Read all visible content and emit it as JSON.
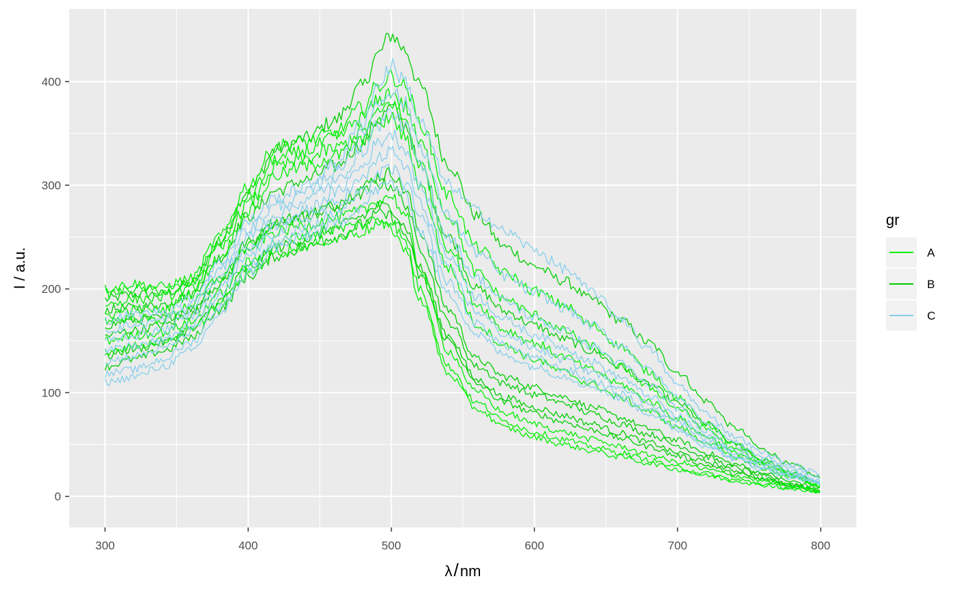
{
  "chart_data": {
    "type": "line",
    "title": "",
    "xlabel_symbol": "λ",
    "xlabel_unit": "nm",
    "ylabel": "I / a.u.",
    "xlim": [
      275,
      825
    ],
    "ylim": [
      -30,
      470
    ],
    "x_ticks": [
      300,
      400,
      500,
      600,
      700,
      800
    ],
    "y_ticks": [
      0,
      100,
      200,
      300,
      400
    ],
    "grid": true,
    "legend": {
      "title": "gr",
      "position": "right",
      "entries": [
        {
          "label": "A",
          "color": "#00ee00"
        },
        {
          "label": "B",
          "color": "#00cd00"
        },
        {
          "label": "C",
          "color": "#87ceeb"
        }
      ]
    },
    "x": [
      300,
      320,
      340,
      360,
      380,
      400,
      420,
      440,
      460,
      480,
      490,
      500,
      510,
      520,
      540,
      560,
      580,
      600,
      620,
      640,
      660,
      680,
      700,
      720,
      740,
      760,
      780,
      800
    ],
    "series": [
      {
        "group": "A",
        "color": "#00ee00",
        "values": [
          200,
          205,
          202,
          210,
          250,
          300,
          338,
          342,
          350,
          375,
          395,
          405,
          395,
          360,
          290,
          240,
          215,
          198,
          185,
          165,
          145,
          120,
          95,
          70,
          50,
          35,
          22,
          10
        ]
      },
      {
        "group": "A",
        "color": "#00ee00",
        "values": [
          195,
          200,
          198,
          205,
          245,
          290,
          325,
          333,
          345,
          365,
          380,
          390,
          375,
          340,
          270,
          215,
          190,
          175,
          160,
          145,
          125,
          105,
          85,
          65,
          45,
          32,
          20,
          10
        ]
      },
      {
        "group": "A",
        "color": "#00ee00",
        "values": [
          185,
          190,
          192,
          200,
          238,
          282,
          318,
          325,
          335,
          352,
          368,
          380,
          362,
          320,
          240,
          185,
          160,
          148,
          135,
          122,
          108,
          92,
          75,
          58,
          42,
          30,
          20,
          10
        ]
      },
      {
        "group": "A",
        "color": "#00ee00",
        "values": [
          175,
          180,
          180,
          195,
          230,
          275,
          310,
          318,
          328,
          342,
          358,
          365,
          345,
          300,
          220,
          165,
          145,
          132,
          120,
          108,
          95,
          82,
          67,
          52,
          38,
          27,
          18,
          10
        ]
      },
      {
        "group": "A",
        "color": "#00ee00",
        "values": [
          170,
          172,
          170,
          185,
          210,
          240,
          255,
          262,
          268,
          275,
          285,
          290,
          270,
          220,
          140,
          100,
          80,
          70,
          62,
          55,
          48,
          40,
          33,
          26,
          20,
          15,
          10,
          6
        ]
      },
      {
        "group": "A",
        "color": "#00ee00",
        "values": [
          150,
          155,
          158,
          168,
          195,
          225,
          245,
          252,
          258,
          262,
          268,
          265,
          245,
          200,
          125,
          90,
          72,
          62,
          55,
          48,
          42,
          35,
          28,
          22,
          16,
          12,
          8,
          4
        ]
      },
      {
        "group": "A",
        "color": "#00ee00",
        "values": [
          140,
          145,
          150,
          160,
          185,
          215,
          235,
          242,
          248,
          255,
          262,
          258,
          238,
          190,
          118,
          84,
          66,
          57,
          50,
          44,
          38,
          32,
          26,
          20,
          15,
          11,
          7,
          3
        ]
      },
      {
        "group": "B",
        "color": "#00cd00",
        "values": [
          190,
          195,
          195,
          205,
          245,
          295,
          335,
          345,
          362,
          395,
          425,
          445,
          430,
          395,
          320,
          270,
          240,
          222,
          208,
          190,
          170,
          148,
          120,
          92,
          66,
          45,
          30,
          18
        ]
      },
      {
        "group": "B",
        "color": "#00cd00",
        "values": [
          180,
          182,
          185,
          195,
          230,
          270,
          295,
          305,
          318,
          340,
          362,
          375,
          358,
          318,
          250,
          200,
          178,
          165,
          152,
          140,
          125,
          108,
          90,
          70,
          50,
          35,
          22,
          12
        ]
      },
      {
        "group": "B",
        "color": "#00cd00",
        "values": [
          165,
          170,
          172,
          180,
          210,
          245,
          265,
          272,
          280,
          298,
          308,
          312,
          295,
          255,
          180,
          132,
          115,
          105,
          96,
          86,
          76,
          65,
          54,
          42,
          31,
          22,
          14,
          8
        ]
      },
      {
        "group": "B",
        "color": "#00cd00",
        "values": [
          155,
          160,
          165,
          175,
          205,
          240,
          262,
          270,
          278,
          292,
          302,
          300,
          282,
          240,
          168,
          125,
          108,
          98,
          90,
          80,
          70,
          60,
          49,
          38,
          28,
          20,
          12,
          6
        ]
      },
      {
        "group": "B",
        "color": "#00cd00",
        "values": [
          135,
          142,
          148,
          160,
          188,
          220,
          240,
          248,
          258,
          270,
          280,
          278,
          260,
          220,
          155,
          112,
          95,
          86,
          78,
          70,
          61,
          52,
          42,
          33,
          25,
          17,
          11,
          5
        ]
      },
      {
        "group": "B",
        "color": "#00cd00",
        "values": [
          125,
          132,
          140,
          152,
          180,
          212,
          232,
          240,
          250,
          262,
          272,
          270,
          252,
          212,
          150,
          108,
          90,
          80,
          72,
          64,
          56,
          48,
          39,
          30,
          22,
          16,
          10,
          5
        ]
      },
      {
        "group": "C",
        "color": "#87ceeb",
        "values": [
          170,
          175,
          178,
          190,
          225,
          265,
          288,
          298,
          320,
          360,
          395,
          415,
          400,
          360,
          300,
          275,
          255,
          238,
          220,
          198,
          172,
          142,
          108,
          80,
          58,
          42,
          30,
          22
        ]
      },
      {
        "group": "C",
        "color": "#87ceeb",
        "values": [
          160,
          165,
          170,
          182,
          218,
          258,
          280,
          292,
          312,
          348,
          378,
          392,
          378,
          338,
          270,
          235,
          212,
          196,
          182,
          165,
          146,
          122,
          96,
          72,
          52,
          38,
          27,
          18
        ]
      },
      {
        "group": "C",
        "color": "#87ceeb",
        "values": [
          150,
          155,
          160,
          175,
          210,
          250,
          272,
          285,
          302,
          332,
          358,
          370,
          356,
          318,
          250,
          210,
          188,
          172,
          160,
          145,
          128,
          108,
          85,
          64,
          46,
          34,
          24,
          16
        ]
      },
      {
        "group": "C",
        "color": "#87ceeb",
        "values": [
          140,
          145,
          150,
          165,
          200,
          240,
          262,
          275,
          292,
          318,
          340,
          350,
          335,
          298,
          232,
          192,
          170,
          156,
          144,
          130,
          115,
          97,
          77,
          58,
          42,
          31,
          22,
          15
        ]
      },
      {
        "group": "C",
        "color": "#87ceeb",
        "values": [
          130,
          135,
          142,
          158,
          192,
          232,
          255,
          268,
          282,
          305,
          325,
          332,
          318,
          282,
          218,
          178,
          156,
          143,
          132,
          120,
          106,
          90,
          72,
          55,
          40,
          29,
          21,
          14
        ]
      },
      {
        "group": "C",
        "color": "#87ceeb",
        "values": [
          118,
          122,
          132,
          148,
          182,
          222,
          246,
          258,
          272,
          292,
          310,
          316,
          302,
          268,
          206,
          166,
          145,
          133,
          123,
          112,
          99,
          84,
          67,
          51,
          37,
          27,
          19,
          13
        ]
      },
      {
        "group": "C",
        "color": "#87ceeb",
        "values": [
          110,
          115,
          125,
          140,
          175,
          215,
          240,
          250,
          262,
          280,
          296,
          302,
          290,
          255,
          195,
          156,
          136,
          125,
          116,
          106,
          94,
          80,
          64,
          49,
          36,
          26,
          18,
          12
        ]
      }
    ]
  }
}
